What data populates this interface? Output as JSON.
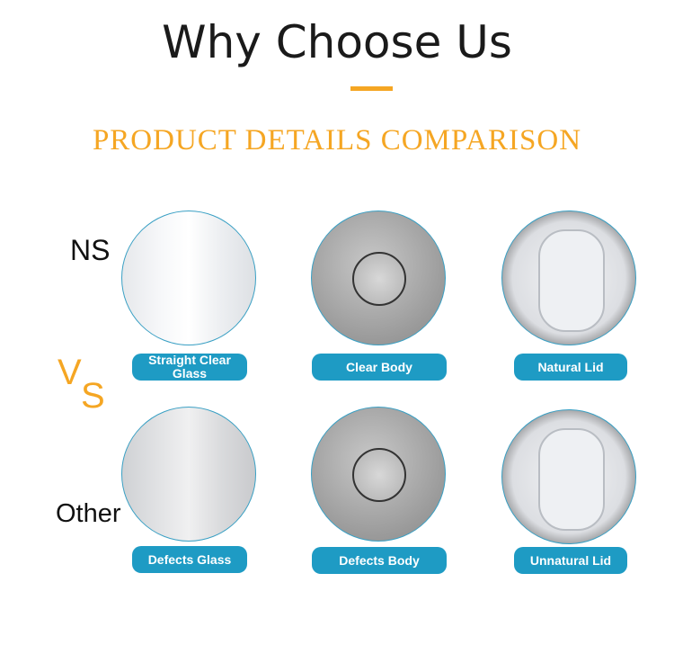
{
  "header": {
    "title": "Why Choose Us",
    "subtitle": "PRODUCT DETAILS COMPARISON"
  },
  "labels": {
    "ours": "NS",
    "vs_v": "V",
    "vs_s": "S",
    "other": "Other"
  },
  "colors": {
    "accent": "#f5a623",
    "button": "#1e9bc4"
  },
  "rows": [
    {
      "items": [
        "Straight Clear Glass",
        "Clear Body",
        "Natural Lid"
      ]
    },
    {
      "items": [
        "Defects Glass",
        "Defects Body",
        "Unnatural Lid"
      ]
    }
  ]
}
